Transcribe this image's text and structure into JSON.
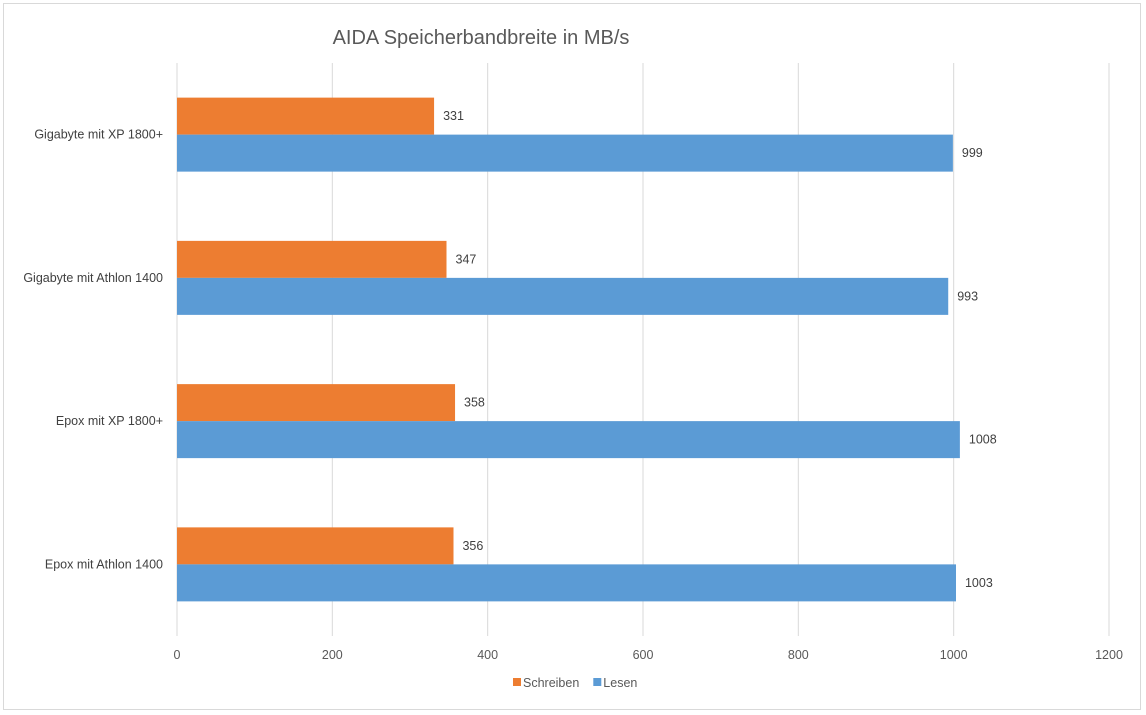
{
  "chart_data": {
    "type": "bar",
    "orientation": "horizontal",
    "title": "AIDA  Speicherbandbreite in MB/s",
    "categories": [
      "Gigabyte mit XP 1800+",
      "Gigabyte mit Athlon 1400",
      "Epox mit XP 1800+",
      "Epox mit Athlon 1400"
    ],
    "series": [
      {
        "name": "Schreiben",
        "values": [
          331,
          347,
          358,
          356
        ],
        "color": "#ED7D31"
      },
      {
        "name": "Lesen",
        "values": [
          999,
          993,
          1008,
          1003
        ],
        "color": "#5B9BD5"
      }
    ],
    "xlim": [
      0,
      1200
    ],
    "xticks": [
      "0",
      "200",
      "400",
      "600",
      "800",
      "1000",
      "1200"
    ],
    "grid": true,
    "legend_position": "bottom"
  }
}
